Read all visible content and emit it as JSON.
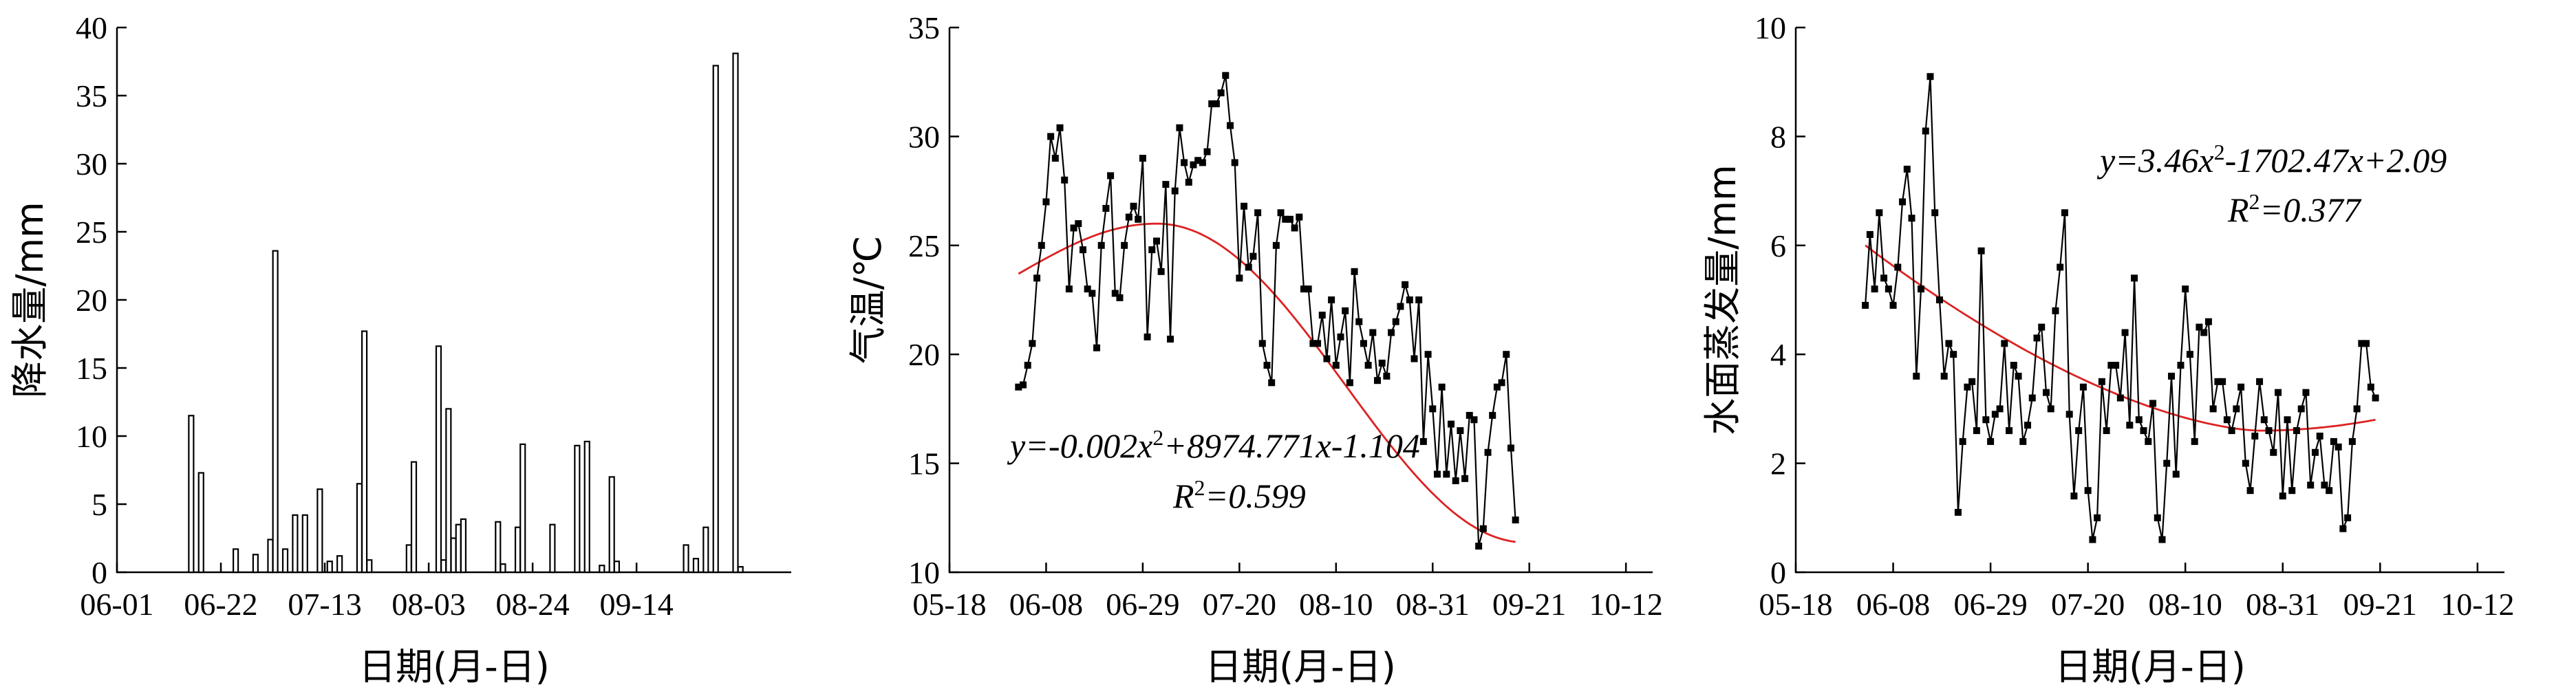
{
  "chart_data": [
    {
      "type": "bar",
      "ylabel": "降水量/mm",
      "xlabel": "日期(月-日)",
      "ylim": [
        0,
        40
      ],
      "yticks": [
        0,
        5,
        10,
        15,
        20,
        25,
        30,
        35,
        40
      ],
      "xticks": [
        "06-01",
        "06-22",
        "07-13",
        "08-03",
        "08-24",
        "09-14"
      ],
      "xlim_day": [
        1,
        125
      ],
      "x": [
        16,
        18,
        25,
        29,
        32,
        33,
        35,
        37,
        39,
        42,
        44,
        46,
        50,
        51,
        52,
        60,
        61,
        66,
        67,
        68,
        69,
        70,
        71,
        78,
        79,
        82,
        83,
        89,
        94,
        96,
        99,
        101,
        102,
        116,
        118,
        120,
        122,
        126,
        127
      ],
      "values": [
        11.5,
        7.3,
        1.7,
        1.3,
        2.4,
        23.6,
        1.7,
        4.2,
        4.2,
        6.1,
        0.8,
        1.2,
        6.5,
        17.7,
        0.9,
        2.0,
        8.1,
        16.6,
        0.9,
        12.0,
        2.5,
        3.5,
        3.9,
        3.7,
        0.6,
        3.3,
        9.4,
        3.5,
        9.3,
        9.6,
        0.5,
        7.0,
        0.8,
        2.0,
        1.0,
        3.3,
        37.2,
        38.1,
        0.4
      ]
    },
    {
      "type": "line",
      "ylabel": "气温/℃",
      "xlabel": "日期(月-日)",
      "ylim": [
        10,
        35
      ],
      "yticks": [
        10,
        15,
        20,
        25,
        30,
        35
      ],
      "xticks": [
        "05-18",
        "06-08",
        "06-29",
        "07-20",
        "08-10",
        "08-31",
        "09-21",
        "10-12"
      ],
      "xlim_day": [
        -14,
        133
      ],
      "x_start_day": 1,
      "values": [
        18.5,
        18.6,
        19.5,
        20.5,
        23.5,
        25.0,
        27.0,
        30.0,
        29.0,
        30.4,
        28.0,
        23.0,
        25.8,
        26.0,
        24.8,
        23.0,
        22.8,
        20.3,
        25.0,
        26.7,
        28.2,
        22.8,
        22.6,
        25.0,
        26.3,
        26.8,
        26.2,
        29.0,
        20.8,
        24.8,
        25.2,
        23.8,
        27.8,
        20.7,
        27.5,
        30.4,
        28.8,
        27.9,
        28.7,
        28.9,
        28.8,
        29.3,
        31.5,
        31.5,
        32.0,
        32.8,
        30.5,
        28.8,
        23.5,
        26.8,
        24.0,
        24.5,
        26.5,
        20.5,
        19.5,
        18.7,
        25.0,
        26.5,
        26.2,
        26.2,
        25.8,
        26.3,
        23.0,
        23.0,
        20.5,
        20.5,
        21.8,
        19.8,
        22.5,
        19.5,
        20.8,
        22.0,
        18.7,
        23.8,
        21.5,
        20.5,
        19.5,
        21.0,
        18.8,
        19.6,
        19.0,
        21.0,
        21.5,
        22.2,
        23.2,
        22.5,
        19.8,
        22.5,
        16.0,
        20.0,
        17.5,
        14.5,
        18.5,
        14.5,
        16.8,
        14.2,
        16.5,
        14.3,
        17.2,
        17.0,
        11.2,
        12.0,
        15.5,
        17.2,
        18.5,
        18.7,
        20.0,
        15.7,
        12.4
      ],
      "fit": {
        "equation": "y=-0.002x²+8974.771x-1.104",
        "r2": "R²=0.599",
        "start": 23.7,
        "peak": 26.0,
        "peak_day": 31,
        "end": 13.3
      }
    },
    {
      "type": "line",
      "ylabel": "水面蒸发量/mm",
      "xlabel": "日期(月-日)",
      "ylim": [
        0,
        10
      ],
      "yticks": [
        0,
        2,
        4,
        6,
        8,
        10
      ],
      "xticks": [
        "05-18",
        "06-08",
        "06-29",
        "07-20",
        "08-10",
        "08-31",
        "09-21",
        "10-12"
      ],
      "xlim_day": [
        -14,
        133
      ],
      "x_start_day": 1,
      "values": [
        4.9,
        6.2,
        5.2,
        6.6,
        5.4,
        5.2,
        4.9,
        5.6,
        6.8,
        7.4,
        6.5,
        3.6,
        5.2,
        8.1,
        9.1,
        6.6,
        5.0,
        3.6,
        4.2,
        4.0,
        1.1,
        2.4,
        3.4,
        3.5,
        2.6,
        5.9,
        2.8,
        2.4,
        2.9,
        3.0,
        4.2,
        2.6,
        3.8,
        3.6,
        2.4,
        2.7,
        3.2,
        4.3,
        4.5,
        3.3,
        3.0,
        4.8,
        5.6,
        6.6,
        2.9,
        1.4,
        2.6,
        3.4,
        1.5,
        0.6,
        1.0,
        3.5,
        2.6,
        3.8,
        3.8,
        3.2,
        4.4,
        2.7,
        5.4,
        2.8,
        2.6,
        2.4,
        3.1,
        1.0,
        0.6,
        2.0,
        3.6,
        1.8,
        3.8,
        5.2,
        4.0,
        2.4,
        4.5,
        4.4,
        4.6,
        3.0,
        3.5,
        3.5,
        2.8,
        2.6,
        3.0,
        3.4,
        2.0,
        1.5,
        2.5,
        3.5,
        2.8,
        2.6,
        2.2,
        3.3,
        1.4,
        2.8,
        1.5,
        2.6,
        3.0,
        3.3,
        1.6,
        2.2,
        2.5,
        1.6,
        1.5,
        2.4,
        2.3,
        0.8,
        1.0,
        2.4,
        3.0,
        4.2,
        4.2,
        3.4,
        3.2
      ],
      "fit": {
        "equation": "y=3.46x²-1702.47x+2.09",
        "r2": "R²=0.377",
        "start": 6.0,
        "min": 2.6,
        "min_day": 86,
        "end": 2.8
      }
    }
  ]
}
